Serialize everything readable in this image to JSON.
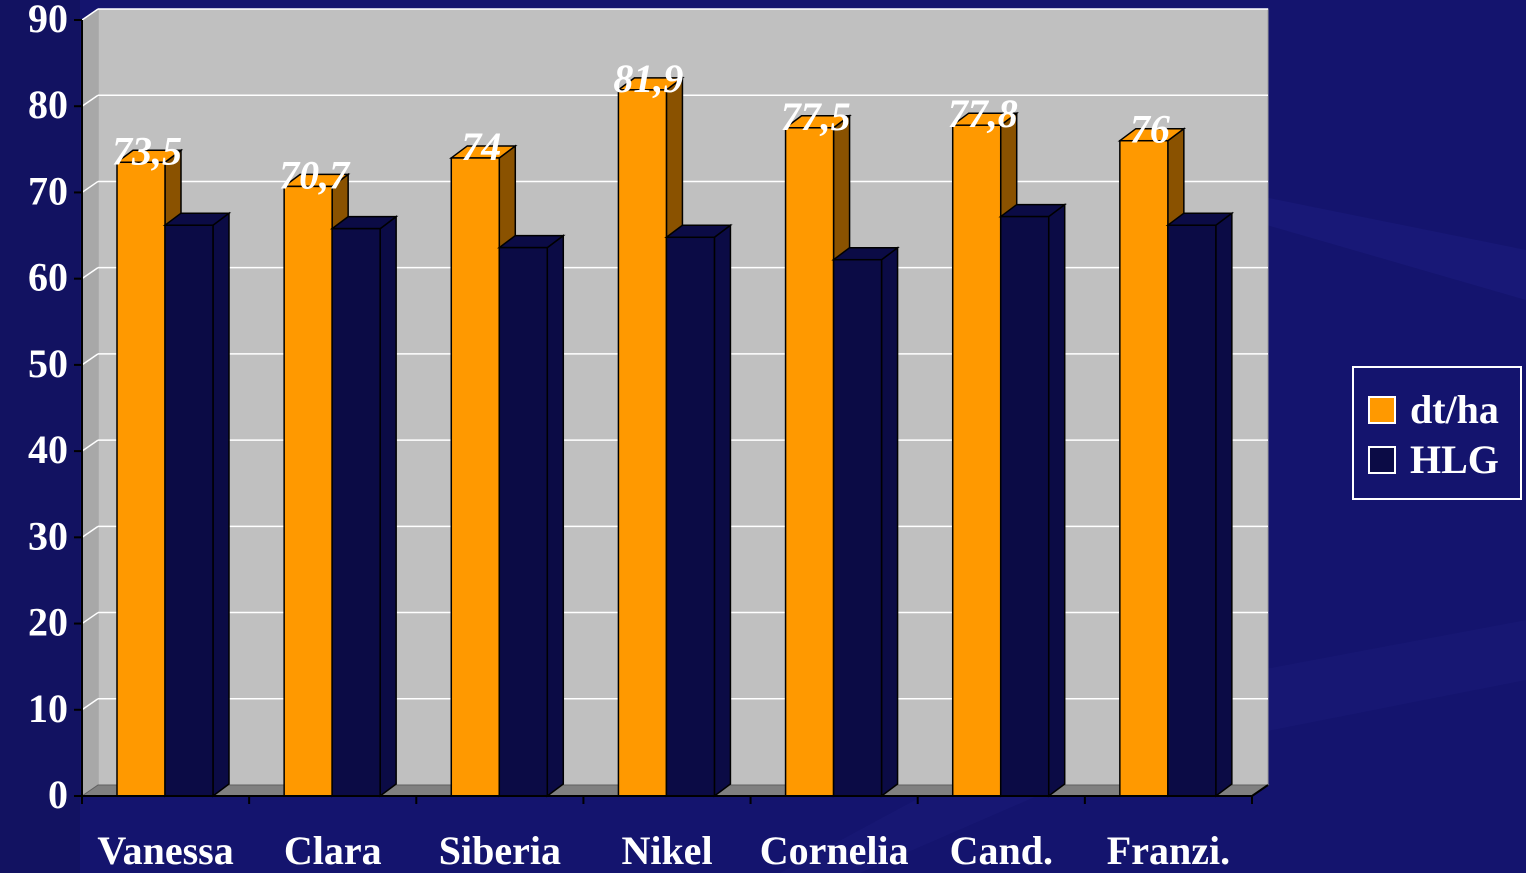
{
  "colors": {
    "background": "#14146e",
    "plot_area": "#c0c0c0",
    "floor": "#808080",
    "series_dtha": "#ff9900",
    "series_dtha_side": "#8a5200",
    "series_hlg": "#0b0b45",
    "text": "#ffffff"
  },
  "chart_data": {
    "type": "bar",
    "style": "3d-clustered",
    "categories": [
      "Vanessa",
      "Clara",
      "Siberia",
      "Nikel",
      "Cornelia",
      "Cand.",
      "Franzi."
    ],
    "series": [
      {
        "name": "dt/ha",
        "values": [
          73.5,
          70.7,
          74,
          81.9,
          77.5,
          77.8,
          76
        ],
        "data_labels": [
          "73,5",
          "70,7",
          "74",
          "81,9",
          "77,5",
          "77,8",
          "76"
        ]
      },
      {
        "name": "HLG",
        "values": [
          66.2,
          65.8,
          63.6,
          64.8,
          62.2,
          67.2,
          66.2
        ]
      }
    ],
    "y_ticks": [
      "0",
      "10",
      "20",
      "30",
      "40",
      "50",
      "60",
      "70",
      "80",
      "90"
    ],
    "ylim": [
      0,
      90
    ],
    "grid": true,
    "legend": "right",
    "title": "",
    "xlabel": "",
    "ylabel": ""
  }
}
